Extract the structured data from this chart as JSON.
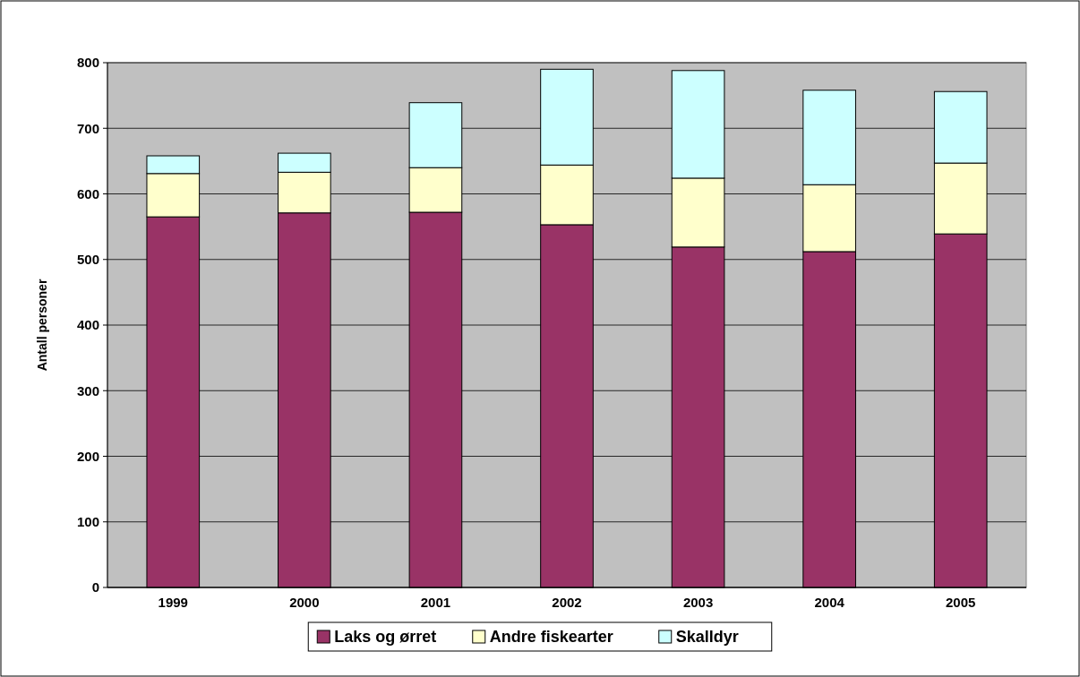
{
  "chart_data": {
    "type": "bar",
    "stacked": true,
    "ylabel": "Antall personer",
    "categories": [
      "1999",
      "2000",
      "2001",
      "2002",
      "2003",
      "2004",
      "2005"
    ],
    "series": [
      {
        "name": "Laks og ørret",
        "color": "#993366",
        "values": [
          565,
          571,
          572,
          553,
          519,
          512,
          539
        ]
      },
      {
        "name": "Andre fiskearter",
        "color": "#ffffcc",
        "values": [
          66,
          62,
          68,
          91,
          105,
          102,
          108
        ]
      },
      {
        "name": "Skalldyr",
        "color": "#ccffff",
        "values": [
          27,
          29,
          99,
          146,
          164,
          144,
          109
        ]
      }
    ],
    "ylim": [
      0,
      800
    ],
    "yticks": [
      0,
      100,
      200,
      300,
      400,
      500,
      600,
      700,
      800
    ],
    "grid": "y",
    "legend": "bottom"
  }
}
